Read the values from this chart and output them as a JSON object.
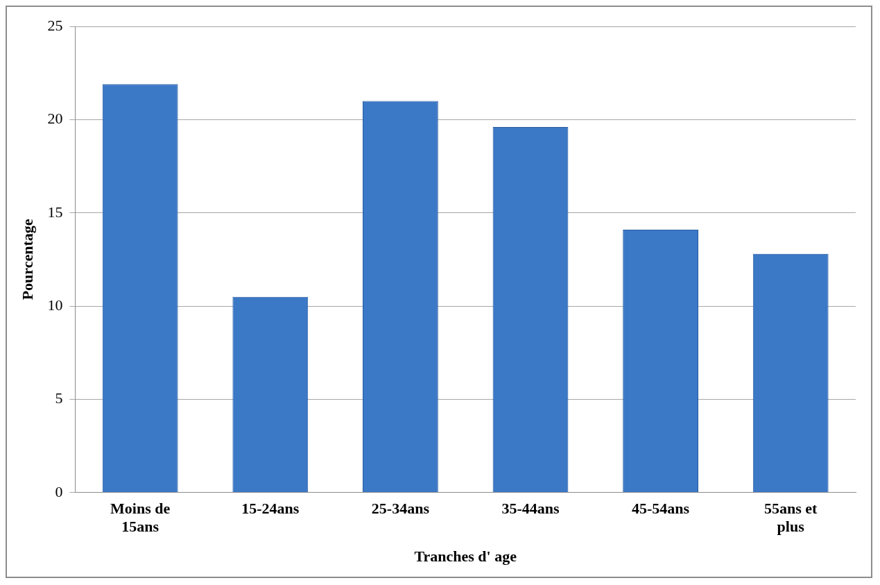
{
  "chart_data": {
    "type": "bar",
    "xlabel": "Tranches d' age",
    "ylabel": "Pourcentage",
    "categories": [
      "Moins de 15ans",
      "15-24ans",
      "25-34ans",
      "35-44ans",
      "45-54ans",
      "55ans et plus"
    ],
    "values": [
      21.9,
      10.5,
      21.0,
      19.6,
      14.1,
      12.8
    ],
    "color": "#3b78c6",
    "ylim": [
      0,
      25
    ],
    "yticks": [
      0,
      5,
      10,
      15,
      20,
      25
    ],
    "grid": "y",
    "legend": false
  }
}
